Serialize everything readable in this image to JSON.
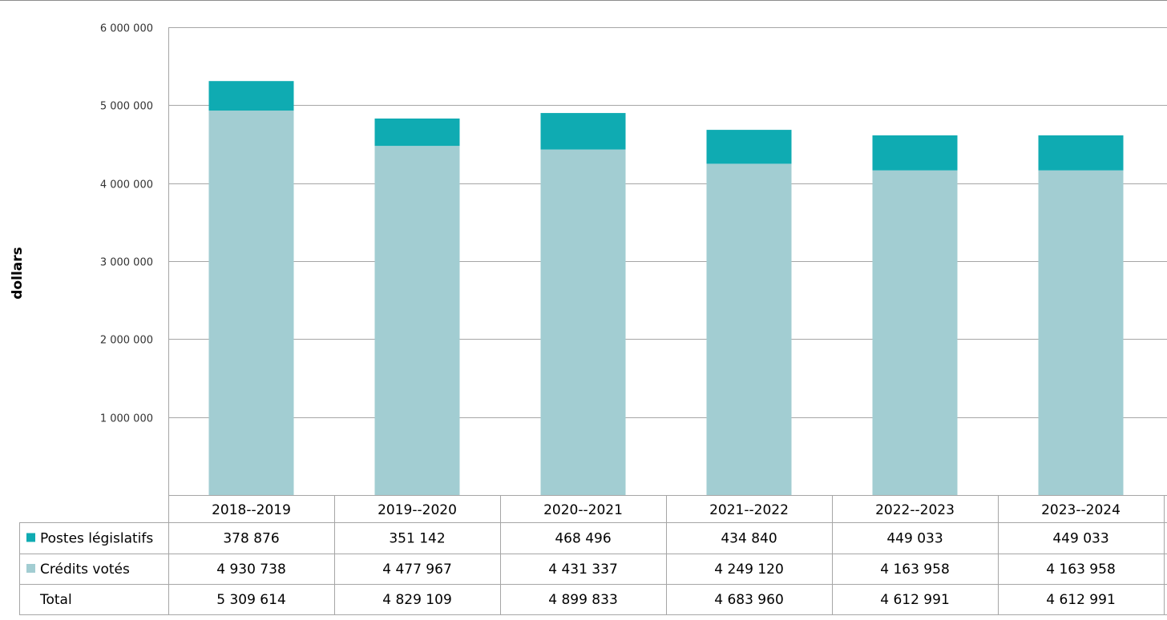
{
  "chart_data": {
    "type": "bar",
    "stacked": true,
    "title": "",
    "xlabel": "",
    "ylabel": "dollars",
    "ylim": [
      0,
      6000000
    ],
    "yticks": [
      1000000,
      2000000,
      3000000,
      4000000,
      5000000,
      6000000
    ],
    "ytick_labels": [
      "1 000 000",
      "2 000 000",
      "3 000 000",
      "4 000 000",
      "5 000 000",
      "6 000 000"
    ],
    "grid": true,
    "legend": "data table below chart",
    "categories": [
      "2018-‑2019",
      "2019-‑2020",
      "2020-‑2021",
      "2021-‑2022",
      "2022-‑2023",
      "2023-‑2024"
    ],
    "series": [
      {
        "name": "Crédits votés",
        "color": "#a2cdd2",
        "values": [
          4930738,
          4477967,
          4431337,
          4249120,
          4163958,
          4163958
        ],
        "labels": [
          "4 930 738",
          "4 477 967",
          "4 431 337",
          "4 249 120",
          "4 163 958",
          "4 163 958"
        ]
      },
      {
        "name": "Postes législatifs",
        "color": "#0fabb2",
        "values": [
          378876,
          351142,
          468496,
          434840,
          449033,
          449033
        ],
        "labels": [
          "378 876",
          "351 142",
          "468 496",
          "434 840",
          "449 033",
          "449 033"
        ]
      }
    ],
    "table": {
      "rows": [
        {
          "label": "Postes législatifs",
          "series": 1,
          "swatch": true
        },
        {
          "label": "Crédits votés",
          "series": 0,
          "swatch": true
        },
        {
          "label": "Total",
          "series": null,
          "swatch": false,
          "labels": [
            "5 309 614",
            "4 829 109",
            "4 899 833",
            "4 683 960",
            "4 612 991",
            "4 612 991"
          ]
        }
      ]
    }
  }
}
